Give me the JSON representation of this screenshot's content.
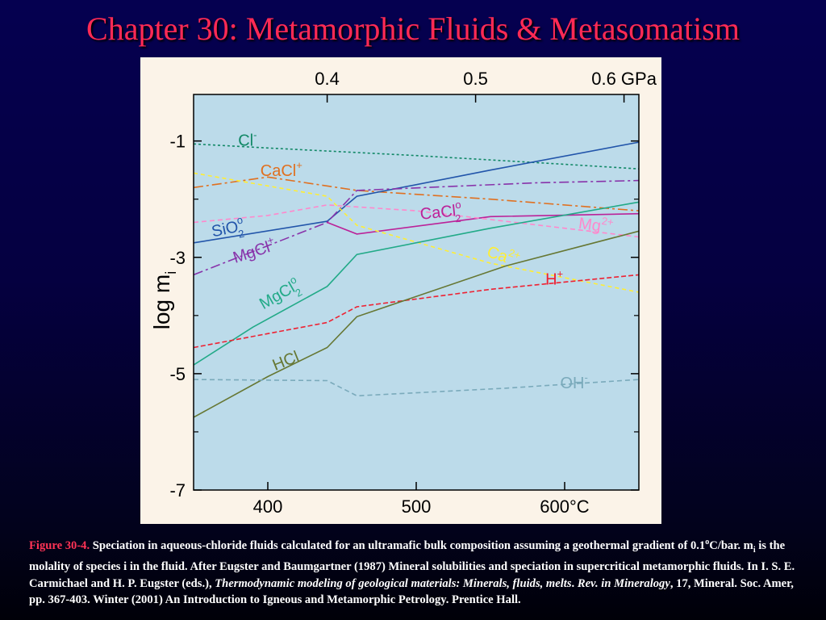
{
  "slide": {
    "title": "Chapter 30: Metamorphic Fluids & Metasomatism"
  },
  "caption": {
    "figure_ref": "Figure 30-4.",
    "part1": " Speciation in aqueous-chloride fluids calculated for an ultramafic bulk composition assuming a geothermal gradient of 0.1",
    "degree": "o",
    "part2": "C/bar. m",
    "sub_i": "i",
    "part3": " is the molality of species i in the fluid. After Eugster and Baumgartner (1987) Mineral solubilities and speciation in supercritical metamorphic fluids. In I. S. E. Carmichael and H. P. Eugster (eds.), ",
    "italic": "Thermodynamic modeling of geological materials: Minerals, fluids, melts",
    "part4": ". ",
    "italic2": "Rev. in Mineralogy",
    "part5": ", 17, Mineral. Soc. Amer, pp. 367-403. Winter (2001) An Introduction to Igneous and Metamorphic Petrology. Prentice Hall."
  },
  "chart_data": {
    "type": "line",
    "xlabel": "",
    "ylabel": "log m",
    "ylabel_sub": "i",
    "xlim": [
      350,
      650
    ],
    "ylim": [
      -7,
      -0.2
    ],
    "x_ticks": [
      400,
      500,
      600
    ],
    "x_tick_labels": [
      "400",
      "500",
      "600°C"
    ],
    "top_ticks_x": [
      440,
      540,
      640
    ],
    "top_tick_labels": [
      "0.4",
      "0.5",
      "0.6 GPa"
    ],
    "y_ticks": [
      -1,
      -3,
      -5,
      -7
    ],
    "y_tick_labels": [
      "-1",
      "-3",
      "-5",
      "-7"
    ],
    "grid": false,
    "background": "#bcdbea",
    "series": [
      {
        "name": "Cl",
        "sup": "-",
        "color": "#118866",
        "dash": "3,3",
        "points": [
          [
            350,
            -1.05
          ],
          [
            400,
            -1.12
          ],
          [
            500,
            -1.25
          ],
          [
            600,
            -1.4
          ],
          [
            650,
            -1.48
          ]
        ],
        "label_pos": [
          380,
          -1.08
        ]
      },
      {
        "name": "CaCl",
        "sup": "+",
        "color": "#e07020",
        "dash": "12,4,3,4",
        "points": [
          [
            350,
            -1.8
          ],
          [
            400,
            -1.62
          ],
          [
            460,
            -1.85
          ],
          [
            550,
            -2.0
          ],
          [
            650,
            -2.2
          ]
        ],
        "label_pos": [
          395,
          -1.6
        ]
      },
      {
        "name": "SiO",
        "sub": "2",
        "sup": "o",
        "color": "#2255aa",
        "dash": "",
        "points": [
          [
            350,
            -2.75
          ],
          [
            440,
            -2.38
          ],
          [
            460,
            -1.95
          ],
          [
            550,
            -1.5
          ],
          [
            650,
            -1.02
          ]
        ],
        "label_pos": [
          363,
          -2.65
        ]
      },
      {
        "name": "MgCl",
        "sup": "+",
        "color": "#8833aa",
        "dash": "12,4,3,4",
        "points": [
          [
            350,
            -3.3
          ],
          [
            440,
            -2.4
          ],
          [
            460,
            -1.85
          ],
          [
            580,
            -1.72
          ],
          [
            650,
            -1.68
          ]
        ],
        "label_pos": [
          378,
          -3.1
        ]
      },
      {
        "name": "CaCl",
        "sub": "2",
        "sup": "o",
        "color": "#bb2299",
        "dash": "",
        "points": [
          [
            440,
            -2.4
          ],
          [
            460,
            -2.6
          ],
          [
            550,
            -2.3
          ],
          [
            650,
            -2.25
          ]
        ],
        "label_pos": [
          503,
          -2.35
        ]
      },
      {
        "name": "Mg",
        "sup": "2+",
        "color": "#ff88cc",
        "dash": "6,4",
        "points": [
          [
            350,
            -2.4
          ],
          [
            400,
            -2.28
          ],
          [
            440,
            -2.1
          ],
          [
            500,
            -2.2
          ],
          [
            650,
            -2.65
          ]
        ],
        "label_pos": [
          609,
          -2.5
        ]
      },
      {
        "name": "Ca",
        "sup": "2+",
        "color": "#ffee33",
        "dash": "5,4",
        "points": [
          [
            350,
            -1.55
          ],
          [
            440,
            -1.95
          ],
          [
            460,
            -2.45
          ],
          [
            550,
            -3.1
          ],
          [
            650,
            -3.6
          ]
        ],
        "label_pos": [
          547,
          -2.98
        ]
      },
      {
        "name": "MgCl",
        "sub": "2",
        "sup": "o",
        "color": "#22aa88",
        "dash": "",
        "points": [
          [
            350,
            -4.85
          ],
          [
            390,
            -4.2
          ],
          [
            440,
            -3.5
          ],
          [
            460,
            -2.95
          ],
          [
            550,
            -2.5
          ],
          [
            650,
            -2.05
          ]
        ],
        "label_pos": [
          397,
          -3.9
        ]
      },
      {
        "name": "H",
        "sup": "+",
        "color": "#ee2233",
        "dash": "6,3",
        "points": [
          [
            350,
            -4.55
          ],
          [
            440,
            -4.12
          ],
          [
            460,
            -3.85
          ],
          [
            550,
            -3.55
          ],
          [
            650,
            -3.3
          ]
        ],
        "label_pos": [
          587,
          -3.47
        ]
      },
      {
        "name": "HCl",
        "color": "#667733",
        "dash": "",
        "points": [
          [
            350,
            -5.75
          ],
          [
            400,
            -5.05
          ],
          [
            440,
            -4.55
          ],
          [
            460,
            -4.02
          ],
          [
            560,
            -3.15
          ],
          [
            650,
            -2.55
          ]
        ],
        "label_pos": [
          405,
          -4.95
        ]
      },
      {
        "name": "OH",
        "sup": "-",
        "color": "#7aaabb",
        "dash": "6,4",
        "points": [
          [
            350,
            -5.1
          ],
          [
            440,
            -5.12
          ],
          [
            460,
            -5.38
          ],
          [
            560,
            -5.25
          ],
          [
            650,
            -5.1
          ]
        ],
        "label_pos": [
          597,
          -5.25
        ]
      }
    ]
  }
}
